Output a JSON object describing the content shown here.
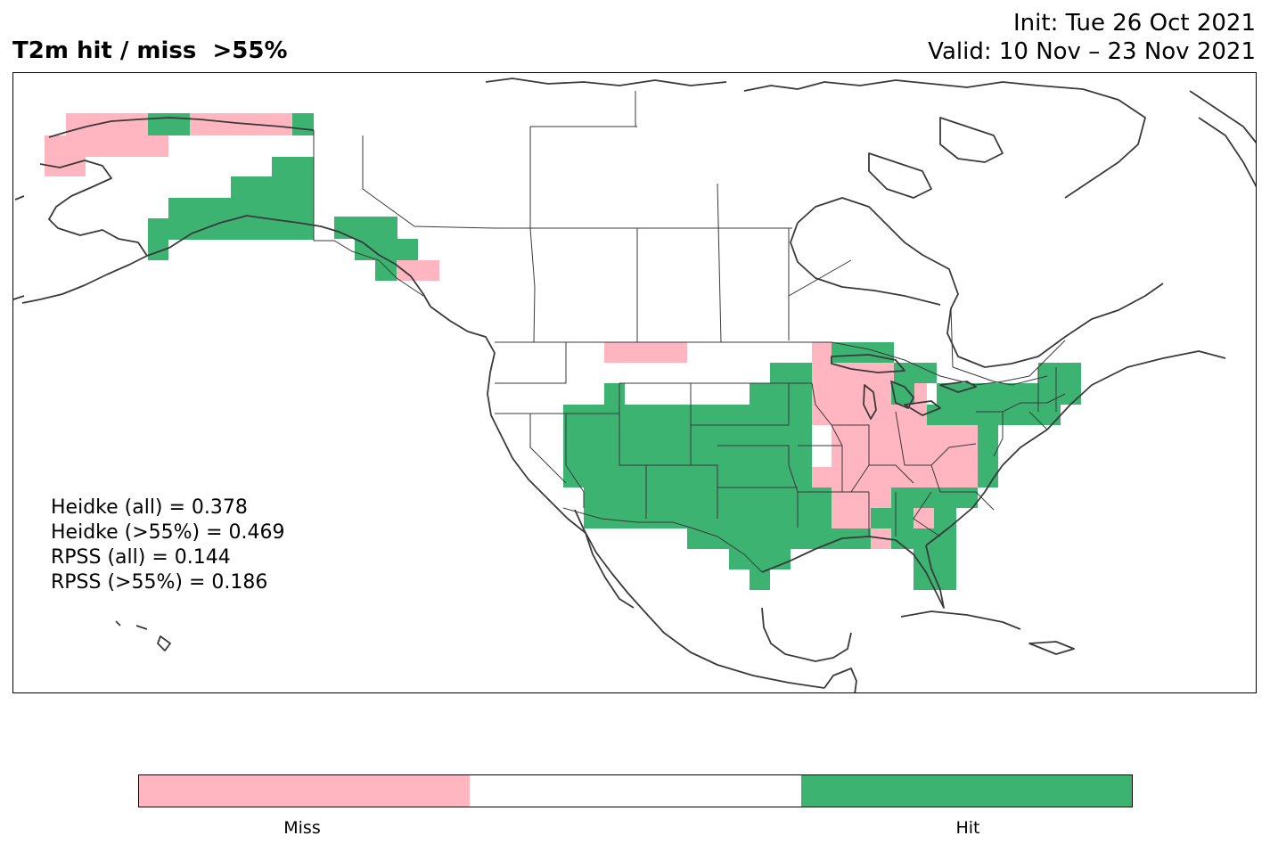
{
  "title": "T2m hit / miss  >55%",
  "init": "Init: Tue 26 Oct 2021",
  "valid": "Valid: 10 Nov – 23 Nov 2021",
  "stats": {
    "heidke_all": "Heidke (all) = 0.378",
    "heidke_55": "Heidke (>55%) = 0.469",
    "rpss_all": "RPSS (all) = 0.144",
    "rpss_55": "RPSS (>55%) = 0.186"
  },
  "colors": {
    "miss": "#ffb6c1",
    "neutral": "#ffffff",
    "hit": "#3cb371",
    "lines": "#3a3a3a"
  },
  "colorbar": {
    "miss_label": "Miss",
    "hit_label": "Hit"
  }
}
